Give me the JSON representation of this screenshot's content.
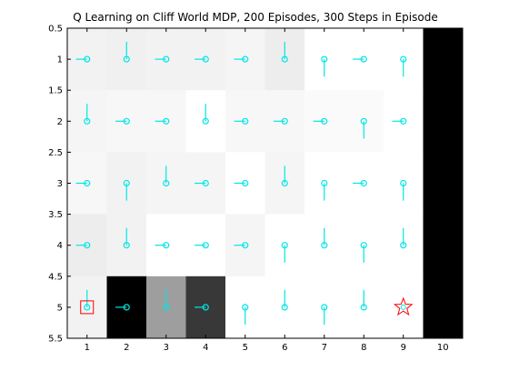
{
  "chart_data": {
    "type": "heatmap",
    "title": "Q Learning on Cliff World MDP, 200 Episodes, 300 Steps in Episode",
    "xlabel": "",
    "ylabel": "",
    "xlim": [
      0.5,
      10.5
    ],
    "ylim": [
      0.5,
      5.5
    ],
    "y_reversed": true,
    "grid": false,
    "x_ticks": [
      "1",
      "2",
      "3",
      "4",
      "5",
      "6",
      "7",
      "8",
      "9",
      "10"
    ],
    "y_ticks": [
      "0.5",
      "1",
      "1.5",
      "2",
      "2.5",
      "3",
      "3.5",
      "4",
      "4.5",
      "5",
      "5.5"
    ],
    "cell_values": [
      [
        0.95,
        0.94,
        0.95,
        0.95,
        0.96,
        0.93,
        1.0,
        1.0,
        1.0,
        0.0
      ],
      [
        0.96,
        0.97,
        0.97,
        1.0,
        0.97,
        0.97,
        0.98,
        0.98,
        1.0,
        0.0
      ],
      [
        0.97,
        0.95,
        0.96,
        0.96,
        1.0,
        0.96,
        1.0,
        1.0,
        1.0,
        0.0
      ],
      [
        0.93,
        0.95,
        1.0,
        1.0,
        0.96,
        1.0,
        1.0,
        1.0,
        1.0,
        0.0
      ],
      [
        0.95,
        0.0,
        0.62,
        0.22,
        1.0,
        1.0,
        1.0,
        1.0,
        1.0,
        0.0
      ]
    ],
    "policy_actions": [
      [
        "left",
        "up",
        "left",
        "left",
        "left",
        "up",
        "down",
        "left",
        "down",
        ""
      ],
      [
        "up",
        "left",
        "left",
        "up",
        "left",
        "left",
        "left",
        "down",
        "left",
        ""
      ],
      [
        "left",
        "down",
        "up",
        "left",
        "left",
        "up",
        "down",
        "left",
        "down",
        ""
      ],
      [
        "left",
        "up",
        "left",
        "left",
        "left",
        "down",
        "up",
        "down",
        "up",
        ""
      ],
      [
        "up",
        "left",
        "up",
        "left",
        "down",
        "up",
        "down",
        "up",
        "",
        ""
      ]
    ],
    "start": {
      "x": 1,
      "y": 5
    },
    "goal": {
      "x": 9,
      "y": 5
    },
    "colors": {
      "arrow": "#00e6e6",
      "start_marker": "#ff0000",
      "goal_marker": "#ff0000",
      "goal_fill": "#00e6e6",
      "axes": "#000000"
    }
  }
}
